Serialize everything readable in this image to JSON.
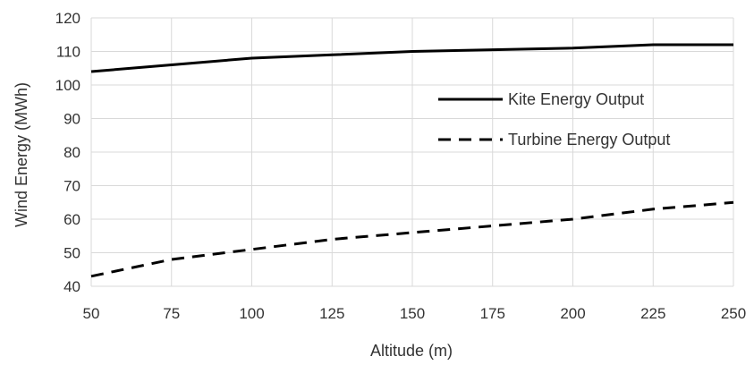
{
  "chart_data": {
    "type": "line",
    "title": "",
    "xlabel": "Altitude (m)",
    "ylabel": "Wind Energy  (MWh)",
    "xlim": [
      50,
      250
    ],
    "ylim": [
      40,
      120
    ],
    "xticks": [
      50,
      75,
      100,
      125,
      150,
      175,
      200,
      225,
      250
    ],
    "yticks": [
      40,
      50,
      60,
      70,
      80,
      90,
      100,
      110,
      120
    ],
    "grid": true,
    "legend_position": "right",
    "series": [
      {
        "name": "Kite Energy Output",
        "style": "solid",
        "color": "#000000",
        "x": [
          50,
          75,
          100,
          125,
          150,
          175,
          200,
          225,
          250
        ],
        "y": [
          104,
          106,
          108,
          109,
          110,
          110.5,
          111,
          112,
          112
        ]
      },
      {
        "name": "Turbine Energy Output",
        "style": "dashed",
        "color": "#000000",
        "x": [
          50,
          75,
          100,
          125,
          150,
          175,
          200,
          225,
          250
        ],
        "y": [
          43,
          48,
          51,
          54,
          56,
          58,
          60,
          63,
          65
        ]
      }
    ]
  }
}
